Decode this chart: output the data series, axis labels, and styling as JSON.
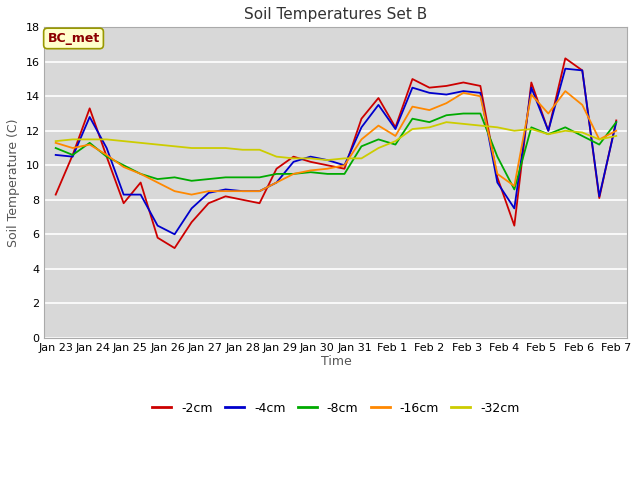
{
  "title": "Soil Temperatures Set B",
  "xlabel": "Time",
  "ylabel": "Soil Temperature (C)",
  "annotation": "BC_met",
  "ylim": [
    0,
    18
  ],
  "yticks": [
    0,
    2,
    4,
    6,
    8,
    10,
    12,
    14,
    16,
    18
  ],
  "x_labels": [
    "Jan 23",
    "Jan 24",
    "Jan 25",
    "Jan 26",
    "Jan 27",
    "Jan 28",
    "Jan 29",
    "Jan 30",
    "Jan 31",
    "Feb 1",
    "Feb 2",
    "Feb 3",
    "Feb 4",
    "Feb 5",
    "Feb 6",
    "Feb 7"
  ],
  "series": {
    "-2cm": {
      "color": "#cc0000",
      "data": [
        8.3,
        10.6,
        13.3,
        10.5,
        7.8,
        9.0,
        5.8,
        5.2,
        6.7,
        7.8,
        8.2,
        8.0,
        7.8,
        9.8,
        10.5,
        10.2,
        10.0,
        9.8,
        12.7,
        13.9,
        12.2,
        15.0,
        14.5,
        14.6,
        14.8,
        14.6,
        9.3,
        6.5,
        14.8,
        12.0,
        16.2,
        15.5,
        8.1,
        12.6
      ]
    },
    "-4cm": {
      "color": "#0000cc",
      "data": [
        10.6,
        10.5,
        12.8,
        11.0,
        8.3,
        8.3,
        6.5,
        6.0,
        7.5,
        8.4,
        8.6,
        8.5,
        8.5,
        9.0,
        10.2,
        10.5,
        10.3,
        10.0,
        12.2,
        13.5,
        12.1,
        14.5,
        14.2,
        14.1,
        14.3,
        14.2,
        9.0,
        7.5,
        14.5,
        12.0,
        15.6,
        15.5,
        8.2,
        12.5
      ]
    },
    "-8cm": {
      "color": "#00aa00",
      "data": [
        11.0,
        10.6,
        11.3,
        10.5,
        10.0,
        9.5,
        9.2,
        9.3,
        9.1,
        9.2,
        9.3,
        9.3,
        9.3,
        9.5,
        9.5,
        9.6,
        9.5,
        9.5,
        11.1,
        11.5,
        11.2,
        12.7,
        12.5,
        12.9,
        13.0,
        13.0,
        10.5,
        8.6,
        12.2,
        11.8,
        12.2,
        11.7,
        11.2,
        12.5
      ]
    },
    "-16cm": {
      "color": "#ff8800",
      "data": [
        11.3,
        11.0,
        11.2,
        10.6,
        9.9,
        9.5,
        9.0,
        8.5,
        8.3,
        8.5,
        8.5,
        8.5,
        8.5,
        9.0,
        9.5,
        9.7,
        9.8,
        10.0,
        11.5,
        12.3,
        11.7,
        13.4,
        13.2,
        13.6,
        14.2,
        14.0,
        9.5,
        8.8,
        14.1,
        13.0,
        14.3,
        13.5,
        11.5,
        12.0
      ]
    },
    "-32cm": {
      "color": "#cccc00",
      "data": [
        11.4,
        11.5,
        11.5,
        11.5,
        11.4,
        11.3,
        11.2,
        11.1,
        11.0,
        11.0,
        11.0,
        10.9,
        10.9,
        10.5,
        10.4,
        10.4,
        10.3,
        10.4,
        10.4,
        11.0,
        11.4,
        12.1,
        12.2,
        12.5,
        12.4,
        12.3,
        12.2,
        12.0,
        12.1,
        11.8,
        12.0,
        11.9,
        11.5,
        11.7
      ]
    }
  },
  "fig_bg_color": "#ffffff",
  "plot_bg_color": "#d8d8d8",
  "grid_color": "#ffffff",
  "legend_order": [
    "-2cm",
    "-4cm",
    "-8cm",
    "-16cm",
    "-32cm"
  ],
  "title_fontsize": 11,
  "axis_label_fontsize": 9,
  "tick_fontsize": 8
}
